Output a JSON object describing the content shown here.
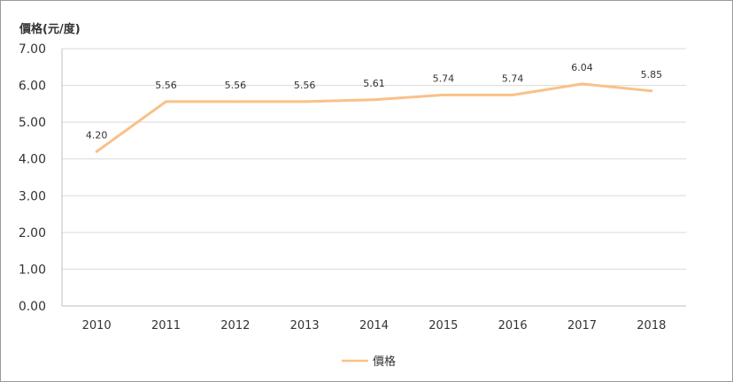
{
  "chart_data": {
    "type": "line",
    "title": "",
    "ylabel": "價格(元/度)",
    "xlabel": "",
    "categories": [
      "2010",
      "2011",
      "2012",
      "2013",
      "2014",
      "2015",
      "2016",
      "2017",
      "2018"
    ],
    "series": [
      {
        "name": "價格",
        "values": [
          4.2,
          5.56,
          5.56,
          5.56,
          5.61,
          5.74,
          5.74,
          6.04,
          5.85
        ],
        "data_labels": [
          "4.20",
          "5.56",
          "5.56",
          "5.56",
          "5.61",
          "5.74",
          "5.74",
          "6.04",
          "5.85"
        ],
        "color": "#F9C188"
      }
    ],
    "ylim": [
      0,
      7
    ],
    "yticks": [
      "0.00",
      "1.00",
      "2.00",
      "3.00",
      "4.00",
      "5.00",
      "6.00",
      "7.00"
    ],
    "grid": true,
    "legend": "bottom"
  }
}
